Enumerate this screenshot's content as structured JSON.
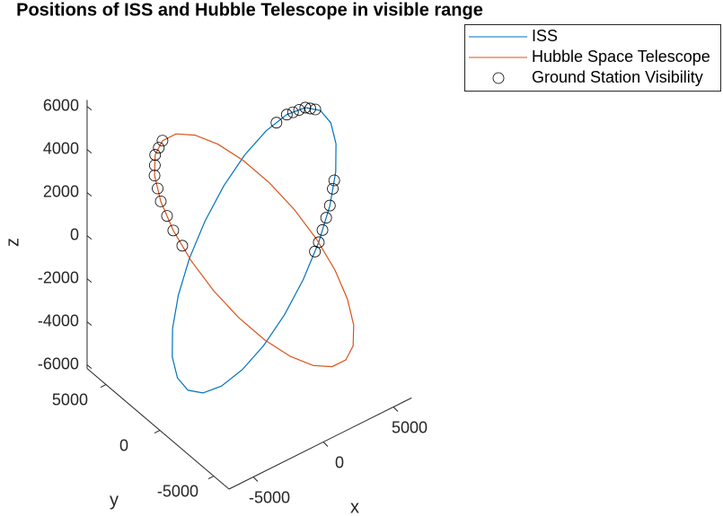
{
  "chart_data": {
    "type": "line3d",
    "title": "Positions of ISS and Hubble Telescope in visible range",
    "xlabel": "x",
    "ylabel": "y",
    "zlabel": "z",
    "xlim": [
      -6730,
      6300
    ],
    "ylim": [
      -6420,
      6750
    ],
    "zlim": [
      -6170,
      6300
    ],
    "xticks": [
      -5000,
      0,
      5000
    ],
    "yticks": [
      -5000,
      0,
      5000
    ],
    "zticks": [
      -6000,
      -4000,
      -2000,
      0,
      2000,
      4000,
      6000
    ],
    "series": [
      {
        "name": "ISS",
        "color": "#0072bd",
        "mode": "line",
        "x": [
          3795,
          4529,
          4953,
          5039,
          4784,
          4203,
          3333,
          2237,
          988,
          -327,
          -1619,
          -2803,
          -3795,
          -4529,
          -4953,
          -5039,
          -4784,
          -4203,
          -3333,
          -2237,
          -988,
          327,
          1619,
          2803,
          3795
        ],
        "y": [
          185,
          -253,
          -674,
          -1048,
          -1351,
          -1562,
          -1667,
          -1658,
          -1537,
          -1310,
          -994,
          -611,
          -185,
          253,
          674,
          1048,
          1351,
          1562,
          1667,
          1658,
          1537,
          1310,
          994,
          611,
          185
        ],
        "z": [
          5313,
          5132,
          4601,
          3756,
          2657,
          1376,
          0,
          -1376,
          -2657,
          -3756,
          -4601,
          -5132,
          -5313,
          -5132,
          -4601,
          -3756,
          -2657,
          -1376,
          0,
          1376,
          2657,
          3756,
          4601,
          5132,
          5313
        ]
      },
      {
        "name": "Hubble Space Telescope",
        "color": "#d95319",
        "mode": "line",
        "x": [
          -2077,
          -982,
          179,
          1328,
          2386,
          3283,
          3955,
          4359,
          4464,
          4264,
          3777,
          3030,
          2077,
          982,
          -179,
          -1328,
          -2386,
          -3283,
          -3955,
          -4359,
          -4464,
          -4264,
          -3777,
          -3030,
          -2077
        ],
        "y": [
          5802,
          5965,
          5720,
          5084,
          4104,
          2845,
          1389,
          -161,
          -1698,
          -3120,
          -4330,
          -5245,
          -5802,
          -5965,
          -5720,
          -5084,
          -4104,
          -2845,
          -1389,
          161,
          1698,
          3120,
          4330,
          5245,
          5802
        ],
        "z": [
          3300,
          3188,
          2858,
          2333,
          1650,
          855,
          0,
          -855,
          -1650,
          -2333,
          -2858,
          -3188,
          -3300,
          -3188,
          -2858,
          -2333,
          -1650,
          -855,
          0,
          855,
          1650,
          2333,
          2858,
          3188,
          3300
        ]
      },
      {
        "name": "Ground Station Visibility",
        "color": "#000000",
        "mode": "markers",
        "x": [
          2211,
          2803,
          3134,
          3464,
          3795,
          4040,
          4285,
          4639,
          4494,
          4203,
          3913,
          3623,
          3333,
          3059,
          -4412,
          -4464,
          -4364,
          -4264,
          -4021,
          -3777,
          -3404,
          -3030,
          -2554,
          -2077
        ],
        "y": [
          803,
          611,
          469,
          327,
          185,
          39,
          -107,
          -1404,
          -1457,
          -1562,
          -1597,
          -1632,
          -1667,
          -1665,
          930,
          1698,
          2409,
          3120,
          3725,
          4330,
          4788,
          5245,
          5524,
          5802
        ],
        "z": [
          4867,
          5132,
          5192,
          5253,
          5313,
          5253,
          5192,
          2337,
          2017,
          1376,
          917,
          459,
          0,
          -344,
          1253,
          1650,
          1992,
          2333,
          2596,
          2858,
          3023,
          3188,
          3244,
          3300
        ]
      }
    ]
  }
}
